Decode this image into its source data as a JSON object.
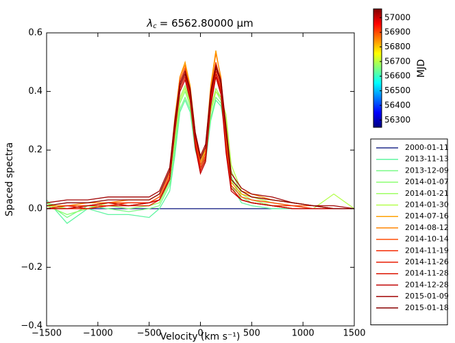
{
  "chart_data": {
    "type": "line",
    "title": {
      "symbol": "λ",
      "subscript": "c",
      "text": "= 6562.80000 μm"
    },
    "x_label": "Velocity (km s⁻¹)",
    "y_label": "Spaced spectra",
    "xlim": [
      -1500,
      1500
    ],
    "ylim": [
      -0.4,
      0.6
    ],
    "xticks": [
      {
        "value": -1500,
        "label": "−1500"
      },
      {
        "value": -1000,
        "label": "−1000"
      },
      {
        "value": -500,
        "label": "−500"
      },
      0,
      500,
      1000,
      1500
    ],
    "yticks": [
      {
        "value": -0.4,
        "label": "−0.4"
      },
      {
        "value": -0.2,
        "label": "−0.2"
      },
      {
        "value": 0,
        "label": "0.0"
      },
      0.2,
      0.4,
      0.6
    ],
    "x": [
      -1500,
      -1300,
      -1100,
      -900,
      -700,
      -500,
      -400,
      -300,
      -250,
      -200,
      -150,
      -100,
      -50,
      0,
      50,
      100,
      150,
      200,
      250,
      300,
      400,
      500,
      700,
      900,
      1100,
      1300,
      1500
    ],
    "series": [
      {
        "name": "2000-01-11",
        "color": "#1f2a8a",
        "values": [
          0,
          0,
          0,
          0,
          0,
          0,
          0,
          0,
          0,
          0,
          0,
          0,
          0,
          0,
          0,
          0,
          0,
          0,
          0,
          0,
          0,
          0,
          0,
          0,
          0,
          0,
          0
        ]
      },
      {
        "name": "2013-11-13",
        "color": "#5ef5a0",
        "values": [
          0.03,
          -0.05,
          0.0,
          -0.02,
          -0.02,
          -0.03,
          0.0,
          0.06,
          0.18,
          0.33,
          0.37,
          0.33,
          0.2,
          0.14,
          0.16,
          0.3,
          0.37,
          0.35,
          0.25,
          0.08,
          0.02,
          0.01,
          0.0,
          0.0,
          0.0,
          0.0,
          0.0
        ]
      },
      {
        "name": "2013-12-09",
        "color": "#78fb84",
        "values": [
          0.02,
          -0.03,
          0.01,
          0.0,
          -0.01,
          0.0,
          0.01,
          0.08,
          0.2,
          0.34,
          0.38,
          0.34,
          0.21,
          0.15,
          0.17,
          0.31,
          0.38,
          0.36,
          0.26,
          0.1,
          0.03,
          0.02,
          0.01,
          0.0,
          0.0,
          0.0,
          0.0
        ]
      },
      {
        "name": "2014-01-07",
        "color": "#8cff72",
        "values": [
          0.01,
          -0.02,
          0.0,
          0.01,
          0.0,
          0.01,
          0.02,
          0.09,
          0.22,
          0.36,
          0.4,
          0.35,
          0.22,
          0.15,
          0.18,
          0.33,
          0.4,
          0.37,
          0.27,
          0.11,
          0.04,
          0.02,
          0.01,
          0.0,
          0.0,
          0.0,
          0.0
        ]
      },
      {
        "name": "2014-01-21",
        "color": "#9eff62",
        "values": [
          0.02,
          0.0,
          0.01,
          0.01,
          0.01,
          0.01,
          0.02,
          0.1,
          0.24,
          0.38,
          0.42,
          0.37,
          0.23,
          0.16,
          0.19,
          0.34,
          0.41,
          0.38,
          0.3,
          0.13,
          0.05,
          0.03,
          0.01,
          0.01,
          0.0,
          0.0,
          0.0
        ]
      },
      {
        "name": "2014-01-30",
        "color": "#b4ff4c",
        "values": [
          0.01,
          0.0,
          0.0,
          0.02,
          0.01,
          0.02,
          0.03,
          0.11,
          0.25,
          0.37,
          0.41,
          0.36,
          0.24,
          0.17,
          0.2,
          0.33,
          0.4,
          0.38,
          0.32,
          0.15,
          0.06,
          0.04,
          0.02,
          0.01,
          0.0,
          0.05,
          0.0
        ]
      },
      {
        "name": "2014-07-16",
        "color": "#ffa000",
        "values": [
          0.01,
          0.01,
          0.01,
          0.02,
          0.02,
          0.02,
          0.04,
          0.12,
          0.3,
          0.45,
          0.5,
          0.42,
          0.26,
          0.17,
          0.21,
          0.42,
          0.54,
          0.44,
          0.22,
          0.09,
          0.05,
          0.04,
          0.03,
          0.02,
          0.01,
          0.0,
          0.0
        ]
      },
      {
        "name": "2014-08-12",
        "color": "#ff8400",
        "values": [
          0.01,
          0.01,
          0.02,
          0.02,
          0.03,
          0.03,
          0.05,
          0.13,
          0.31,
          0.45,
          0.49,
          0.41,
          0.25,
          0.16,
          0.2,
          0.41,
          0.53,
          0.45,
          0.24,
          0.1,
          0.06,
          0.05,
          0.03,
          0.02,
          0.01,
          0.0,
          0.0
        ]
      },
      {
        "name": "2014-10-14",
        "color": "#ff4a00",
        "values": [
          0.0,
          0.01,
          0.01,
          0.02,
          0.02,
          0.02,
          0.04,
          0.12,
          0.29,
          0.44,
          0.48,
          0.4,
          0.24,
          0.15,
          0.19,
          0.4,
          0.5,
          0.43,
          0.22,
          0.08,
          0.04,
          0.03,
          0.02,
          0.01,
          0.01,
          0.0,
          0.0
        ]
      },
      {
        "name": "2014-11-19",
        "color": "#f42800",
        "values": [
          0.0,
          0.0,
          0.01,
          0.01,
          0.02,
          0.02,
          0.03,
          0.11,
          0.28,
          0.43,
          0.47,
          0.39,
          0.23,
          0.14,
          0.18,
          0.38,
          0.49,
          0.42,
          0.21,
          0.07,
          0.03,
          0.02,
          0.01,
          0.01,
          0.0,
          0.0,
          0.0
        ]
      },
      {
        "name": "2014-11-26",
        "color": "#e81c00",
        "values": [
          0.0,
          0.0,
          0.0,
          0.01,
          0.01,
          0.01,
          0.03,
          0.1,
          0.27,
          0.42,
          0.46,
          0.38,
          0.22,
          0.13,
          0.17,
          0.37,
          0.47,
          0.41,
          0.2,
          0.07,
          0.03,
          0.02,
          0.01,
          0.0,
          0.0,
          0.0,
          0.0
        ]
      },
      {
        "name": "2014-11-28",
        "color": "#dc1400",
        "values": [
          0.0,
          0.01,
          0.0,
          0.01,
          0.01,
          0.02,
          0.03,
          0.1,
          0.27,
          0.41,
          0.45,
          0.38,
          0.22,
          0.13,
          0.17,
          0.36,
          0.46,
          0.4,
          0.2,
          0.07,
          0.03,
          0.02,
          0.01,
          0.0,
          0.0,
          0.0,
          0.0
        ]
      },
      {
        "name": "2014-12-28",
        "color": "#c00000",
        "values": [
          0.0,
          0.0,
          0.01,
          0.02,
          0.01,
          0.02,
          0.03,
          0.1,
          0.26,
          0.4,
          0.44,
          0.37,
          0.21,
          0.12,
          0.16,
          0.35,
          0.45,
          0.39,
          0.19,
          0.06,
          0.03,
          0.02,
          0.01,
          0.0,
          0.0,
          0.0,
          0.0
        ]
      },
      {
        "name": "2015-01-09",
        "color": "#a00000",
        "values": [
          0.02,
          0.03,
          0.03,
          0.04,
          0.04,
          0.04,
          0.06,
          0.14,
          0.3,
          0.43,
          0.47,
          0.41,
          0.26,
          0.18,
          0.22,
          0.4,
          0.49,
          0.44,
          0.28,
          0.12,
          0.07,
          0.05,
          0.04,
          0.02,
          0.01,
          0.01,
          0.0
        ]
      },
      {
        "name": "2015-01-18",
        "color": "#880000",
        "values": [
          0.01,
          0.02,
          0.02,
          0.03,
          0.03,
          0.03,
          0.05,
          0.13,
          0.29,
          0.42,
          0.46,
          0.4,
          0.25,
          0.17,
          0.21,
          0.39,
          0.48,
          0.43,
          0.26,
          0.1,
          0.06,
          0.04,
          0.03,
          0.02,
          0.01,
          0.0,
          0.0
        ]
      }
    ],
    "colorbar": {
      "label": "MJD",
      "lim": [
        56250,
        57060
      ],
      "ticks": [
        56300,
        56400,
        56500,
        56600,
        56700,
        56800,
        56900,
        57000
      ],
      "colors": [
        "#00007f",
        "#0000ff",
        "#007fff",
        "#00ffff",
        "#7fff7f",
        "#ffff00",
        "#ff7f00",
        "#ff0000",
        "#7f0000"
      ]
    }
  }
}
